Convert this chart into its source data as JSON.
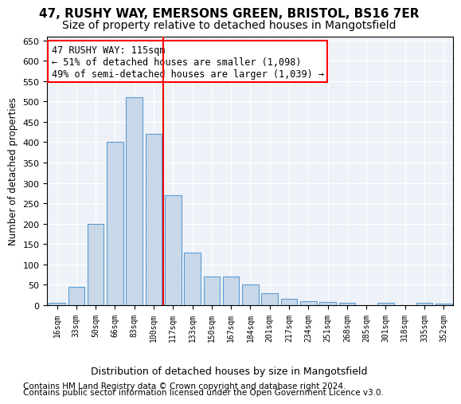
{
  "title1": "47, RUSHY WAY, EMERSONS GREEN, BRISTOL, BS16 7ER",
  "title2": "Size of property relative to detached houses in Mangotsfield",
  "xlabel": "Distribution of detached houses by size in Mangotsfield",
  "ylabel": "Number of detached properties",
  "annotation_line1": "47 RUSHY WAY: 115sqm",
  "annotation_line2": "← 51% of detached houses are smaller (1,098)",
  "annotation_line3": "49% of semi-detached houses are larger (1,039) →",
  "footer1": "Contains HM Land Registry data © Crown copyright and database right 2024.",
  "footer2": "Contains public sector information licensed under the Open Government Licence v3.0.",
  "categories": [
    "16sqm",
    "33sqm",
    "50sqm",
    "66sqm",
    "83sqm",
    "100sqm",
    "117sqm",
    "133sqm",
    "150sqm",
    "167sqm",
    "184sqm",
    "201sqm",
    "217sqm",
    "234sqm",
    "251sqm",
    "268sqm",
    "285sqm",
    "301sqm",
    "318sqm",
    "335sqm",
    "352sqm"
  ],
  "values": [
    5,
    45,
    200,
    400,
    510,
    420,
    270,
    130,
    70,
    70,
    50,
    30,
    15,
    10,
    7,
    5,
    0,
    5,
    0,
    5,
    3
  ],
  "bar_color": "#c8d8e8",
  "bar_edge_color": "#5b9bd5",
  "vline_color": "red",
  "vline_x": 5.5,
  "background_color": "#eef2f8",
  "grid_color": "white",
  "ylim": [
    0,
    660
  ],
  "yticks": [
    0,
    50,
    100,
    150,
    200,
    250,
    300,
    350,
    400,
    450,
    500,
    550,
    600,
    650
  ],
  "title1_fontsize": 11,
  "title2_fontsize": 10,
  "annotation_fontsize": 8.5,
  "footer_fontsize": 7.5
}
